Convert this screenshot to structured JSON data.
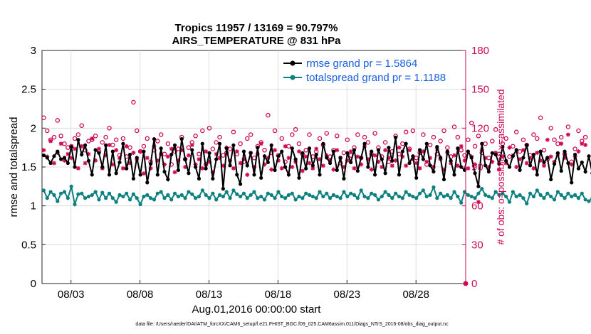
{
  "chart_data": {
    "type": "line",
    "title": [
      "Tropics 11957 / 13169 = 90.797%",
      "AIRS_TEMPERATURE @ 831 hPa"
    ],
    "xlabel": "Aug.01,2016 00:00:00 start",
    "ylabel": "rmse and totalspread",
    "ylabel_right": "# of obs: o=possible; ×=assimilated",
    "ylim": [
      0,
      3
    ],
    "ylim_right": [
      0,
      180
    ],
    "xlim": [
      0.9,
      31.6
    ],
    "yticks": [
      "0",
      "0.5",
      "1",
      "1.5",
      "2",
      "2.5",
      "3"
    ],
    "yticks_right": [
      "0",
      "30",
      "60",
      "90",
      "120",
      "150",
      "180"
    ],
    "xticks": [
      {
        "x": 3,
        "label": "08/03"
      },
      {
        "x": 8,
        "label": "08/08"
      },
      {
        "x": 13,
        "label": "08/13"
      },
      {
        "x": 18,
        "label": "08/18"
      },
      {
        "x": 23,
        "label": "08/23"
      },
      {
        "x": 28,
        "label": "08/28"
      }
    ],
    "legend_position": "top-right",
    "samples_per_day": 4,
    "series": [
      {
        "name": "rmse grand pr = 1.5864",
        "color": "#000000",
        "axis": "left",
        "values": [
          1.65,
          1.62,
          1.55,
          1.64,
          1.7,
          1.6,
          1.62,
          1.55,
          1.76,
          1.5,
          1.85,
          1.66,
          1.78,
          1.58,
          1.4,
          1.72,
          1.68,
          1.5,
          1.78,
          1.4,
          1.7,
          1.42,
          1.56,
          1.8,
          1.48,
          1.66,
          1.35,
          1.62,
          1.4,
          1.7,
          1.3,
          1.54,
          1.86,
          1.4,
          1.74,
          1.44,
          1.34,
          1.66,
          1.78,
          1.46,
          1.86,
          1.6,
          1.42,
          1.72,
          1.5,
          1.35,
          1.8,
          1.48,
          1.68,
          1.35,
          1.6,
          1.8,
          1.22,
          1.74,
          1.52,
          1.78,
          1.4,
          1.28,
          1.7,
          1.52,
          1.68,
          1.4,
          1.75,
          1.36,
          1.64,
          1.56,
          1.78,
          1.46,
          1.64,
          1.7,
          1.5,
          1.4,
          1.74,
          1.6,
          1.36,
          1.68,
          1.48,
          1.74,
          1.52,
          1.66,
          1.4,
          1.8,
          1.62,
          1.55,
          1.7,
          1.46,
          1.62,
          1.35,
          1.68,
          1.56,
          1.72,
          1.45,
          1.62,
          1.8,
          1.5,
          1.7,
          1.4,
          1.72,
          1.6,
          1.42,
          1.75,
          1.58,
          1.88,
          1.4,
          1.7,
          1.8,
          1.55,
          1.64,
          1.36,
          1.72,
          1.6,
          1.8,
          1.52,
          1.44,
          1.76,
          1.62,
          1.34,
          1.7,
          1.58,
          1.4,
          1.74,
          1.5,
          1.46,
          1.7,
          1.62,
          1.42,
          1.25,
          1.8,
          1.52,
          1.44,
          1.68,
          1.66,
          1.54,
          1.76,
          1.58,
          1.5,
          1.64,
          1.72,
          1.46,
          1.62,
          1.78,
          1.52,
          1.66,
          1.4,
          1.7,
          1.56,
          1.62,
          1.34,
          1.54,
          1.68,
          1.45,
          1.7,
          1.55,
          1.3,
          1.66,
          1.48,
          1.56,
          1.44,
          1.64,
          1.42,
          1.46
        ]
      },
      {
        "name": "totalspread grand pr = 1.1188",
        "color": "#0d8080",
        "axis": "left",
        "values": [
          1.2,
          1.1,
          1.18,
          1.14,
          1.06,
          1.16,
          1.18,
          1.1,
          1.25,
          1.02,
          1.15,
          1.16,
          1.1,
          1.12,
          1.14,
          1.18,
          1.08,
          1.17,
          1.1,
          1.16,
          1.1,
          1.05,
          1.14,
          1.12,
          1.16,
          1.08,
          1.15,
          1.1,
          1.02,
          1.12,
          1.14,
          1.1,
          1.08,
          1.16,
          1.18,
          1.1,
          1.14,
          1.08,
          1.16,
          1.12,
          1.14,
          1.1,
          1.18,
          1.15,
          1.1,
          1.12,
          1.2,
          1.14,
          1.1,
          1.16,
          1.08,
          1.14,
          1.12,
          1.18,
          1.1,
          1.2,
          1.15,
          1.12,
          1.16,
          1.1,
          1.14,
          1.18,
          1.1,
          1.12,
          1.08,
          1.16,
          1.14,
          1.1,
          1.18,
          1.12,
          1.1,
          1.14,
          1.16,
          1.08,
          1.12,
          1.1,
          1.16,
          1.14,
          1.12,
          1.1,
          1.18,
          1.12,
          1.16,
          1.1,
          1.14,
          1.12,
          1.1,
          1.18,
          1.12,
          1.16,
          1.14,
          1.1,
          1.2,
          1.12,
          1.1,
          1.16,
          1.14,
          1.08,
          1.12,
          1.18,
          1.14,
          1.1,
          1.16,
          1.12,
          1.1,
          1.18,
          1.14,
          1.12,
          1.1,
          1.16,
          1.2,
          1.12,
          1.14,
          1.24,
          1.1,
          1.16,
          1.12,
          1.14,
          1.1,
          1.18,
          1.12,
          1.04,
          1.18,
          1.14,
          1.12,
          1.1,
          1.16,
          1.22,
          1.14,
          1.12,
          1.1,
          1.18,
          1.14,
          1.16,
          1.12,
          1.05,
          1.18,
          1.12,
          1.14,
          1.1,
          1.03,
          1.16,
          1.12,
          1.2,
          1.14,
          1.1,
          1.16,
          1.12,
          1.08,
          1.18,
          1.14,
          1.1,
          1.16,
          1.12,
          1.14,
          1.1,
          1.16,
          1.08,
          1.06,
          1.1
        ]
      },
      {
        "name": "possible",
        "color": "#cc0a55",
        "axis": "right",
        "marker": "o",
        "values": [
          128,
          118,
          111,
          113,
          126,
          114,
          108,
          105,
          106,
          112,
          115,
          122,
          103,
          110,
          111,
          114,
          102,
          109,
          113,
          120,
          107,
          111,
          99,
          112,
          98,
          105,
          140,
          118,
          102,
          106,
          112,
          94,
          103,
          110,
          115,
          100,
          108,
          92,
          102,
          104,
          113,
          96,
          105,
          109,
          114,
          100,
          118,
          92,
          120,
          104,
          109,
          113,
          99,
          101,
          104,
          117,
          100,
          108,
          94,
          112,
          115,
          97,
          106,
          109,
          103,
          130,
          101,
          118,
          99,
          112,
          94,
          106,
          115,
          119,
          108,
          100,
          103,
          115,
          98,
          102,
          112,
          107,
          116,
          98,
          103,
          114,
          93,
          101,
          111,
          99,
          105,
          115,
          97,
          113,
          109,
          100,
          116,
          105,
          98,
          109,
          94,
          102,
          114,
          100,
          108,
          117,
          104,
          118,
          97,
          101,
          115,
          92,
          107,
          113,
          100,
          110,
          118,
          105,
          98,
          121,
          113,
          103,
          99,
          111,
          124,
          106,
          114,
          101,
          108,
          97,
          110,
          119,
          100,
          108,
          112,
          98,
          106,
          117,
          102,
          111,
          107,
          99,
          115,
          112,
          128,
          103,
          96,
          120,
          111,
          108,
          113,
          100,
          121,
          94,
          104,
          118,
          110,
          113
        ]
      },
      {
        "name": "assimilated",
        "color": "#cc0a55",
        "axis": "right",
        "marker": "*",
        "values": [
          103,
          98,
          110,
          93,
          101,
          108,
          95,
          100,
          97,
          104,
          89,
          106,
          93,
          100,
          112,
          95,
          104,
          89,
          99,
          107,
          92,
          103,
          97,
          89,
          106,
          93,
          101,
          96,
          102,
          85,
          97,
          89,
          106,
          95,
          100,
          92,
          98,
          104,
          86,
          95,
          103,
          90,
          99,
          107,
          92,
          96,
          89,
          102,
          94,
          86,
          100,
          97,
          91,
          105,
          95,
          89,
          102,
          93,
          96,
          84,
          101,
          90,
          100,
          108,
          92,
          97,
          88,
          103,
          95,
          89,
          106,
          97,
          90,
          94,
          102,
          87,
          98,
          93,
          89,
          104,
          96,
          91,
          99,
          95,
          88,
          103,
          97,
          90,
          95,
          102,
          89,
          98,
          92,
          106,
          96,
          88,
          99,
          94,
          90,
          103,
          97,
          91,
          95,
          105,
          98,
          91,
          103,
          96,
          93,
          89,
          102,
          94,
          97,
          90,
          104,
          96,
          88,
          101,
          93,
          99,
          91,
          106,
          95,
          89,
          98,
          92,
          63,
          103,
          97,
          90,
          94,
          101,
          88,
          98,
          93,
          105,
          99,
          90,
          96,
          103,
          93,
          97,
          89,
          101,
          95,
          91,
          111,
          98,
          94,
          100,
          108,
          97,
          115,
          92,
          98,
          102,
          108,
          107
        ]
      }
    ]
  },
  "footer_text": "data file: /Users/raeder/DAI/ATM_forcXX/CAM6_setup/f.e21.FHIST_BGC.f09_025.CAM6assim.011/Diags_NTrS_2016-08/obs_diag_output.nc"
}
